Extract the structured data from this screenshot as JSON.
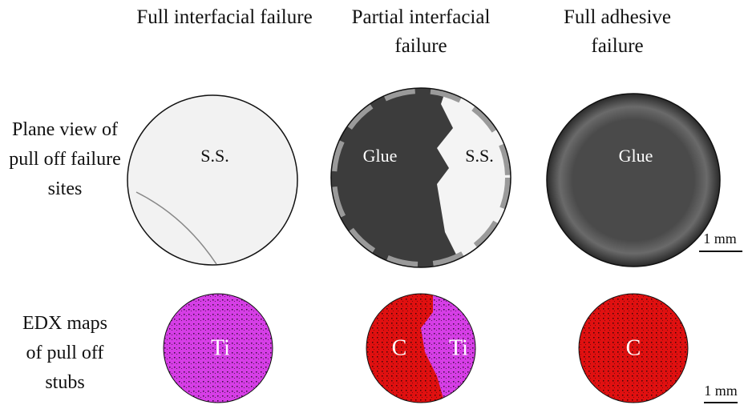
{
  "columns": [
    {
      "title": "Full interfacial failure"
    },
    {
      "title": "Partial interfacial failure"
    },
    {
      "title": "Full adhesive failure"
    }
  ],
  "rows": [
    {
      "label": "Plane view of pull off failure sites"
    },
    {
      "label": "EDX maps of pull off stubs"
    }
  ],
  "panels": {
    "plane_view": [
      {
        "labels": [
          "S.S."
        ]
      },
      {
        "labels": [
          "Glue",
          "S.S."
        ]
      },
      {
        "labels": [
          "Glue"
        ]
      }
    ],
    "edx": [
      {
        "labels": [
          "Ti"
        ]
      },
      {
        "labels": [
          "C",
          "Ti"
        ]
      },
      {
        "labels": [
          "C"
        ]
      }
    ]
  },
  "scale_bars": [
    "1 mm",
    "1 mm"
  ]
}
